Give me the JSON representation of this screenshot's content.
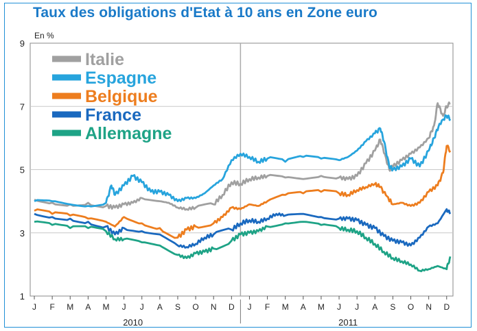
{
  "chart_data": {
    "type": "line",
    "title": "Taux des obligations d'Etat à 10 ans en Zone euro",
    "ylabel": "En  %",
    "ylim": [
      1,
      9
    ],
    "yticks": [
      1,
      3,
      5,
      7,
      9
    ],
    "month_labels": [
      "J",
      "F",
      "M",
      "A",
      "M",
      "J",
      "J",
      "A",
      "S",
      "O",
      "N",
      "D",
      "J",
      "F",
      "M",
      "A",
      "M",
      "J",
      "J",
      "A",
      "S",
      "O",
      "N",
      "D"
    ],
    "years": [
      "2010",
      "2011"
    ],
    "x_unit": "month index (0 = January 2010, 23 = December 2011)",
    "xlim": [
      0,
      23.2
    ],
    "legend_position": "top-left",
    "series": [
      {
        "name": "Italie",
        "color": "#a0a0a0",
        "x": [
          0,
          1,
          2,
          3,
          4,
          4.5,
          5,
          5.5,
          6,
          7,
          7.5,
          8,
          8.5,
          9,
          10,
          10.5,
          11,
          11.5,
          12,
          12.5,
          13,
          14,
          15,
          16,
          17,
          17.5,
          18,
          18.5,
          19,
          19.3,
          19.6,
          19.8,
          20,
          20.5,
          21,
          21.5,
          22,
          22.3,
          22.5,
          22.8,
          23,
          23.2
        ],
        "y": [
          4.05,
          3.95,
          3.9,
          3.95,
          3.85,
          3.8,
          3.9,
          3.95,
          4.1,
          4.0,
          3.95,
          3.8,
          3.75,
          3.8,
          3.9,
          4.2,
          4.6,
          4.55,
          4.7,
          4.75,
          4.8,
          4.75,
          4.7,
          4.8,
          4.75,
          4.7,
          4.8,
          5.2,
          5.6,
          5.95,
          5.4,
          5.0,
          5.1,
          5.3,
          5.5,
          5.7,
          6.0,
          6.4,
          7.1,
          6.7,
          7.0,
          7.1
        ]
      },
      {
        "name": "Espagne",
        "color": "#27a4dd",
        "x": [
          0,
          1,
          2,
          3,
          4,
          4.3,
          4.5,
          5,
          5.5,
          6,
          6.5,
          7,
          7.5,
          8,
          8.5,
          9,
          9.5,
          10,
          10.5,
          11,
          11.5,
          12,
          12.5,
          13,
          14,
          15,
          16,
          17,
          17.5,
          18,
          18.5,
          19,
          19.3,
          19.5,
          19.8,
          20,
          20.5,
          21,
          21.5,
          22,
          22.3,
          22.6,
          23,
          23.2
        ],
        "y": [
          4.0,
          4.0,
          3.9,
          3.85,
          3.95,
          4.5,
          4.2,
          4.5,
          4.8,
          4.6,
          4.3,
          4.3,
          4.2,
          4.0,
          4.1,
          4.1,
          4.25,
          4.5,
          4.7,
          5.3,
          5.5,
          5.4,
          5.25,
          5.35,
          5.25,
          5.4,
          5.35,
          5.3,
          5.4,
          5.6,
          5.9,
          6.15,
          6.3,
          5.9,
          5.1,
          5.0,
          5.1,
          5.35,
          5.1,
          5.6,
          6.0,
          6.45,
          6.7,
          6.6
        ]
      },
      {
        "name": "Belgique",
        "color": "#ed7d1e",
        "x": [
          0,
          1,
          2,
          3,
          4,
          4.5,
          5,
          6,
          7,
          8,
          8.5,
          9,
          10,
          10.5,
          11,
          11.5,
          12,
          12.5,
          13,
          14,
          15,
          16,
          17,
          17.5,
          18,
          18.5,
          19,
          19.3,
          19.6,
          20,
          20.5,
          21,
          21.5,
          22,
          22.5,
          22.8,
          23,
          23.2
        ],
        "y": [
          3.7,
          3.6,
          3.55,
          3.45,
          3.35,
          3.2,
          3.5,
          3.3,
          3.15,
          2.85,
          3.1,
          3.2,
          3.3,
          3.5,
          3.8,
          3.75,
          3.9,
          3.85,
          4.0,
          4.2,
          4.25,
          4.3,
          4.25,
          4.2,
          4.35,
          4.45,
          4.55,
          4.45,
          4.2,
          3.9,
          3.95,
          3.85,
          3.95,
          4.3,
          4.5,
          4.9,
          5.75,
          5.6
        ]
      },
      {
        "name": "France",
        "color": "#1a69bf",
        "x": [
          0,
          1,
          2,
          3,
          4,
          4.5,
          5,
          6,
          7,
          8,
          8.5,
          9,
          9.5,
          10,
          11,
          11.5,
          12,
          12.5,
          13,
          13.5,
          14,
          15,
          16,
          17,
          17.5,
          18,
          18.5,
          19,
          19.5,
          20,
          20.5,
          21,
          21.5,
          22,
          22.5,
          23,
          23.2
        ],
        "y": [
          3.6,
          3.5,
          3.45,
          3.35,
          3.2,
          2.95,
          3.15,
          3.05,
          2.95,
          2.6,
          2.55,
          2.65,
          2.85,
          2.95,
          3.1,
          3.3,
          3.4,
          3.35,
          3.45,
          3.6,
          3.55,
          3.6,
          3.5,
          3.45,
          3.45,
          3.4,
          3.25,
          3.15,
          2.9,
          2.75,
          2.7,
          2.6,
          2.85,
          3.2,
          3.3,
          3.75,
          3.6
        ]
      },
      {
        "name": "Allemagne",
        "color": "#1ea386",
        "x": [
          0,
          1,
          2,
          3,
          4,
          4.5,
          5,
          6,
          7,
          8,
          8.5,
          9,
          9.5,
          10,
          11,
          11.5,
          12,
          12.5,
          13,
          14,
          15,
          16,
          17,
          17.5,
          18,
          18.5,
          19,
          19.5,
          20,
          20.5,
          21,
          21.5,
          22,
          22.5,
          23,
          23.2
        ],
        "y": [
          3.35,
          3.25,
          3.15,
          3.15,
          3.05,
          2.8,
          2.8,
          2.7,
          2.6,
          2.3,
          2.2,
          2.35,
          2.4,
          2.5,
          2.75,
          2.95,
          3.0,
          3.05,
          3.2,
          3.3,
          3.35,
          3.25,
          3.15,
          3.1,
          3.05,
          2.85,
          2.65,
          2.4,
          2.2,
          2.1,
          2.0,
          1.8,
          1.85,
          1.95,
          1.85,
          2.25
        ]
      }
    ]
  }
}
